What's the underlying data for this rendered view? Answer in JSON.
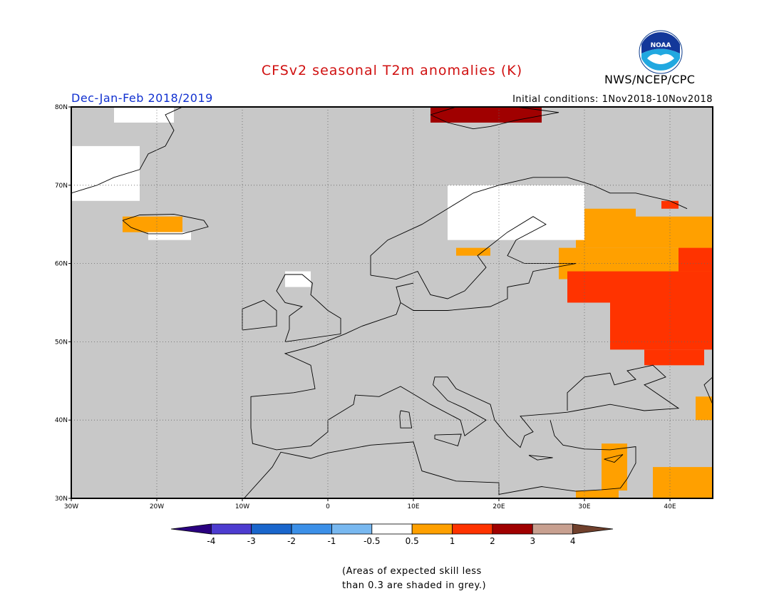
{
  "header": {
    "title": "CFSv2 seasonal T2m anomalies (K)",
    "title_color": "#d01010",
    "season": "Dec-Jan-Feb 2018/2019",
    "season_color": "#1030d0",
    "initial_conditions": "Initial conditions: 1Nov2018-10Nov2018",
    "agency": "NWS/NCEP/CPC",
    "logo_text": "NOAA"
  },
  "map": {
    "lon_range": [
      -30,
      45
    ],
    "lat_range": [
      30,
      80
    ],
    "land_color": "#c8c8c8",
    "lon_ticks": [
      {
        "lon": -30,
        "label": "30W"
      },
      {
        "lon": -20,
        "label": "20W"
      },
      {
        "lon": -10,
        "label": "10W"
      },
      {
        "lon": 0,
        "label": "0"
      },
      {
        "lon": 10,
        "label": "10E"
      },
      {
        "lon": 20,
        "label": "20E"
      },
      {
        "lon": 30,
        "label": "30E"
      },
      {
        "lon": 40,
        "label": "40E"
      }
    ],
    "lat_ticks": [
      {
        "lat": 30,
        "label": "30N"
      },
      {
        "lat": 40,
        "label": "40N"
      },
      {
        "lat": 50,
        "label": "50N"
      },
      {
        "lat": 60,
        "label": "60N"
      },
      {
        "lat": 70,
        "label": "70N"
      },
      {
        "lat": 80,
        "label": "80N"
      }
    ],
    "anomaly_cells": [
      {
        "class": "0.5-1",
        "color": "#ffa000",
        "lon": [
          29,
          36
        ],
        "lat": [
          62,
          67
        ]
      },
      {
        "class": "0.5-1",
        "color": "#ffa000",
        "lon": [
          36,
          45
        ],
        "lat": [
          62,
          66
        ]
      },
      {
        "class": "0.5-1",
        "color": "#ffa000",
        "lon": [
          27,
          45
        ],
        "lat": [
          58,
          62
        ]
      },
      {
        "class": "0.5-1",
        "color": "#ffa000",
        "lon": [
          15,
          19
        ],
        "lat": [
          61,
          62
        ]
      },
      {
        "class": "0.5-1",
        "color": "#ffa000",
        "lon": [
          -24,
          -17
        ],
        "lat": [
          64,
          66
        ]
      },
      {
        "class": "0.5-1",
        "color": "#ffa000",
        "lon": [
          32,
          35
        ],
        "lat": [
          31,
          37
        ]
      },
      {
        "class": "0.5-1",
        "color": "#ffa000",
        "lon": [
          38,
          45
        ],
        "lat": [
          30,
          34
        ]
      },
      {
        "class": "0.5-1",
        "color": "#ffa000",
        "lon": [
          29,
          34
        ],
        "lat": [
          30,
          31
        ]
      },
      {
        "class": "0.5-1",
        "color": "#ffa000",
        "lon": [
          43,
          45
        ],
        "lat": [
          40,
          43
        ]
      },
      {
        "class": "1-2",
        "color": "#ff3300",
        "lon": [
          28,
          45
        ],
        "lat": [
          55,
          59
        ]
      },
      {
        "class": "1-2",
        "color": "#ff3300",
        "lon": [
          33,
          45
        ],
        "lat": [
          49,
          55
        ]
      },
      {
        "class": "1-2",
        "color": "#ff3300",
        "lon": [
          37,
          44
        ],
        "lat": [
          47,
          49
        ]
      },
      {
        "class": "1-2",
        "color": "#ff3300",
        "lon": [
          41,
          45
        ],
        "lat": [
          59,
          62
        ]
      },
      {
        "class": "1-2",
        "color": "#ff3300",
        "lon": [
          39,
          41
        ],
        "lat": [
          67,
          68
        ]
      },
      {
        "class": "2-3",
        "color": "#a00000",
        "lon": [
          12,
          25
        ],
        "lat": [
          78,
          80
        ]
      },
      {
        "class": "-0.5-0.5",
        "color": "#ffffff",
        "lon": [
          14,
          30
        ],
        "lat": [
          63,
          70
        ]
      },
      {
        "class": "-0.5-0.5",
        "color": "#ffffff",
        "lon": [
          -30,
          -22
        ],
        "lat": [
          68,
          75
        ]
      },
      {
        "class": "-0.5-0.5",
        "color": "#ffffff",
        "lon": [
          -25,
          -18
        ],
        "lat": [
          78,
          80
        ]
      },
      {
        "class": "-0.5-0.5",
        "color": "#ffffff",
        "lon": [
          -21,
          -16
        ],
        "lat": [
          63,
          64
        ]
      },
      {
        "class": "-0.5-0.5",
        "color": "#ffffff",
        "lon": [
          -5,
          -2
        ],
        "lat": [
          57,
          59
        ]
      }
    ]
  },
  "colorbar": {
    "bins": [
      {
        "color": "#2a0080"
      },
      {
        "color": "#4d3cd0"
      },
      {
        "color": "#1a66cc"
      },
      {
        "color": "#3c90e8"
      },
      {
        "color": "#78b8f0"
      },
      {
        "color": "#ffffff"
      },
      {
        "color": "#ffa000"
      },
      {
        "color": "#ff3300"
      },
      {
        "color": "#a00000"
      },
      {
        "color": "#c8a090"
      },
      {
        "color": "#70402c"
      }
    ],
    "labels": [
      "-4",
      "-3",
      "-2",
      "-1",
      "-0.5",
      "0.5",
      "1",
      "2",
      "3",
      "4"
    ]
  },
  "footnote": {
    "line1": "(Areas of expected skill less",
    "line2": "than 0.3 are shaded in grey.)"
  }
}
